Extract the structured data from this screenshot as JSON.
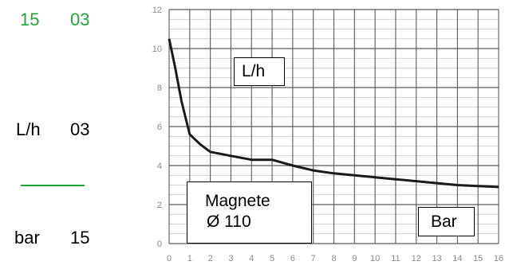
{
  "sidebar": {
    "row1_left": "15",
    "row1_right": "03",
    "row2_left": "L/h",
    "row2_right": "03",
    "row3_left": "bar",
    "row3_right": "15",
    "accent_color": "#1ea83a"
  },
  "chart_data": {
    "type": "line",
    "title": "",
    "xlabel": "Bar",
    "ylabel": "L/h",
    "annotation": {
      "line1": "Magnete",
      "line2": "Ø 110"
    },
    "xlim": [
      0,
      16
    ],
    "ylim": [
      0,
      12
    ],
    "x_ticks": [
      0,
      1,
      2,
      3,
      4,
      5,
      6,
      7,
      8,
      9,
      10,
      11,
      12,
      13,
      14,
      15,
      16
    ],
    "y_ticks": [
      0,
      2,
      4,
      6,
      8,
      10,
      12
    ],
    "grid": true,
    "series": [
      {
        "x": [
          0,
          0.3,
          0.6,
          1,
          1.5,
          2,
          3,
          4,
          5,
          6,
          7,
          8,
          9,
          10,
          11,
          12,
          13,
          14,
          15,
          16
        ],
        "y": [
          10.5,
          9.0,
          7.3,
          5.6,
          5.1,
          4.7,
          4.5,
          4.3,
          4.3,
          4.0,
          3.75,
          3.6,
          3.5,
          3.4,
          3.3,
          3.2,
          3.1,
          3.0,
          2.95,
          2.9
        ]
      }
    ]
  }
}
